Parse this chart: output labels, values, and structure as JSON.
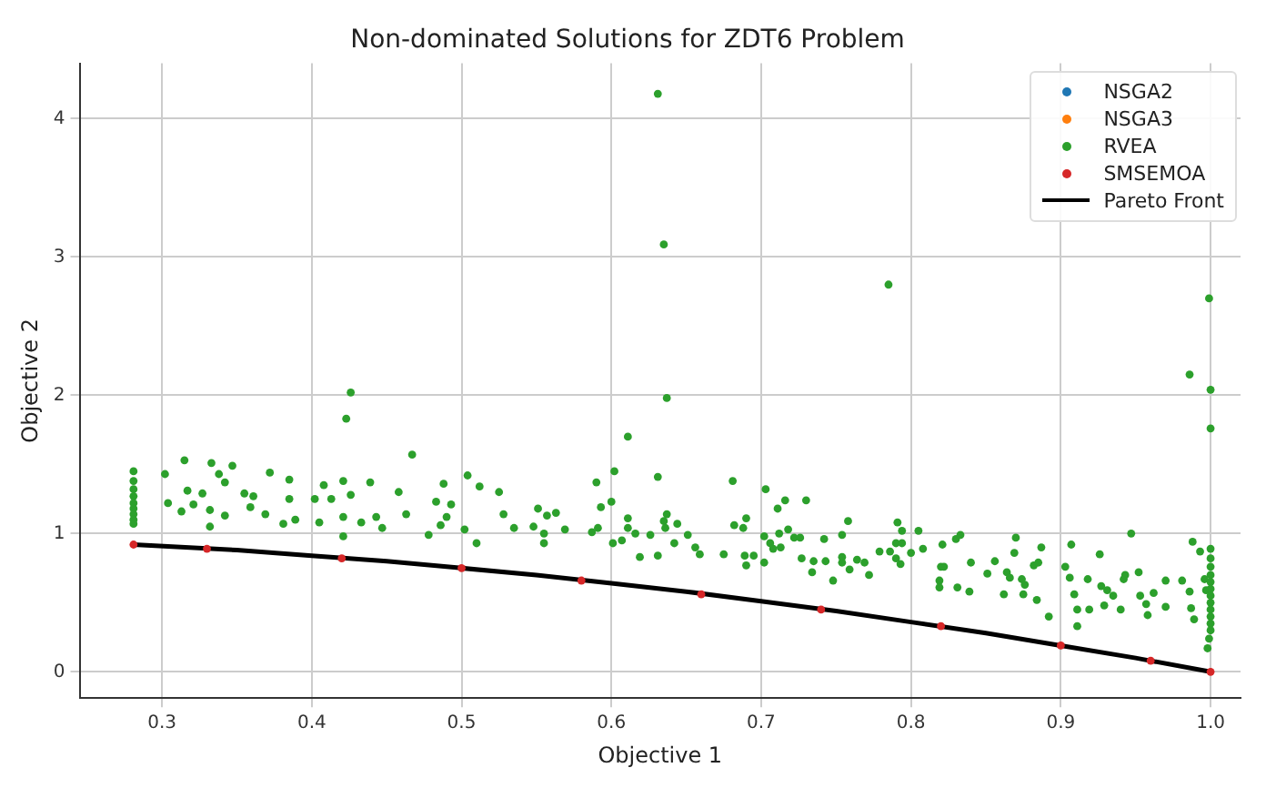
{
  "chart_data": {
    "type": "scatter",
    "title": "Non-dominated Solutions for ZDT6 Problem",
    "xlabel": "Objective 1",
    "ylabel": "Objective 2",
    "xlim": [
      0.245,
      1.02
    ],
    "xticks": [
      {
        "value": 0.3,
        "label": "0.3"
      },
      {
        "value": 0.4,
        "label": "0.4"
      },
      {
        "value": 0.5,
        "label": "0.5"
      },
      {
        "value": 0.6,
        "label": "0.6"
      },
      {
        "value": 0.7,
        "label": "0.7"
      },
      {
        "value": 0.8,
        "label": "0.8"
      },
      {
        "value": 0.9,
        "label": "0.9"
      },
      {
        "value": 1.0,
        "label": "1.0"
      }
    ],
    "ylim": [
      -0.19,
      4.4
    ],
    "yticks": [
      0,
      1,
      2,
      3,
      4
    ],
    "grid": true,
    "legend": "top right",
    "marker": "circle",
    "series": [
      {
        "name": "NSGA2",
        "color": "#1f77b4"
      },
      {
        "name": "NSGA3",
        "color": "#ff7f0e"
      },
      {
        "name": "RVEA",
        "color": "#2ca02c",
        "x": [
          0.281,
          0.281,
          0.281,
          0.281,
          0.281,
          0.281,
          0.281,
          0.281,
          0.281,
          0.315,
          0.333,
          0.347,
          0.302,
          0.338,
          0.372,
          0.342,
          0.385,
          0.408,
          0.421,
          0.439,
          0.317,
          0.327,
          0.355,
          0.361,
          0.385,
          0.402,
          0.413,
          0.426,
          0.458,
          0.304,
          0.313,
          0.321,
          0.332,
          0.342,
          0.359,
          0.369,
          0.389,
          0.405,
          0.421,
          0.433,
          0.443,
          0.463,
          0.332,
          0.381,
          0.421,
          0.447,
          0.467,
          0.488,
          0.483,
          0.493,
          0.478,
          0.486,
          0.49,
          0.504,
          0.512,
          0.502,
          0.51,
          0.525,
          0.528,
          0.535,
          0.548,
          0.551,
          0.555,
          0.555,
          0.557,
          0.563,
          0.569,
          0.59,
          0.587,
          0.593,
          0.591,
          0.6,
          0.602,
          0.611,
          0.611,
          0.611,
          0.601,
          0.607,
          0.616,
          0.619,
          0.626,
          0.631,
          0.631,
          0.635,
          0.636,
          0.637,
          0.642,
          0.644,
          0.651,
          0.656,
          0.659,
          0.675,
          0.681,
          0.682,
          0.688,
          0.69,
          0.689,
          0.69,
          0.695,
          0.703,
          0.702,
          0.702,
          0.706,
          0.708,
          0.712,
          0.711,
          0.716,
          0.713,
          0.718,
          0.722,
          0.726,
          0.73,
          0.727,
          0.735,
          0.734,
          0.742,
          0.743,
          0.748,
          0.754,
          0.631,
          0.635,
          0.785,
          0.999,
          0.986,
          1.0,
          1.0,
          0.426,
          0.423,
          0.637,
          0.758,
          0.791,
          0.794,
          0.805,
          0.754,
          0.79,
          0.794,
          0.786,
          0.779,
          0.79,
          0.793,
          0.754,
          0.764,
          0.769,
          0.759,
          0.772,
          0.8,
          0.808,
          0.821,
          0.83,
          0.833,
          0.82,
          0.822,
          0.819,
          0.819,
          0.831,
          0.839,
          0.84,
          0.851,
          0.856,
          0.864,
          0.866,
          0.862,
          0.87,
          0.869,
          0.874,
          0.876,
          0.875,
          0.882,
          0.885,
          0.887,
          0.884,
          0.892,
          0.903,
          0.906,
          0.907,
          0.909,
          0.911,
          0.911,
          0.918,
          0.919,
          0.926,
          0.927,
          0.929,
          0.931,
          0.935,
          0.94,
          0.942,
          0.943,
          0.947,
          0.952,
          0.953,
          0.957,
          0.958,
          0.962,
          0.97,
          0.97,
          0.981,
          0.986,
          0.987,
          0.989,
          0.988,
          0.993,
          0.996,
          0.997,
          0.999,
          0.998,
          1.0,
          1.0,
          1.0,
          1.0,
          1.0,
          1.0,
          1.0,
          1.0,
          1.0,
          1.0,
          1.0,
          1.0
        ],
        "values": [
          1.45,
          1.38,
          1.32,
          1.27,
          1.22,
          1.18,
          1.14,
          1.1,
          1.07,
          1.53,
          1.51,
          1.49,
          1.43,
          1.43,
          1.44,
          1.37,
          1.39,
          1.35,
          1.38,
          1.37,
          1.31,
          1.29,
          1.29,
          1.27,
          1.25,
          1.25,
          1.25,
          1.28,
          1.3,
          1.22,
          1.16,
          1.21,
          1.17,
          1.13,
          1.19,
          1.14,
          1.1,
          1.08,
          1.12,
          1.08,
          1.12,
          1.14,
          1.05,
          1.07,
          0.98,
          1.04,
          1.57,
          1.36,
          1.23,
          1.21,
          0.99,
          1.06,
          1.12,
          1.42,
          1.34,
          1.03,
          0.93,
          1.3,
          1.14,
          1.04,
          1.05,
          1.18,
          1.0,
          0.93,
          1.13,
          1.15,
          1.03,
          1.37,
          1.01,
          1.19,
          1.04,
          1.23,
          1.45,
          1.7,
          1.11,
          1.04,
          0.93,
          0.95,
          1.0,
          0.83,
          0.99,
          1.41,
          0.84,
          1.09,
          1.04,
          1.14,
          0.93,
          1.07,
          0.99,
          0.9,
          0.85,
          0.85,
          1.38,
          1.06,
          1.04,
          1.11,
          0.84,
          0.77,
          0.84,
          1.32,
          0.98,
          0.79,
          0.93,
          0.89,
          1.0,
          1.18,
          1.24,
          0.9,
          1.03,
          0.97,
          0.97,
          1.24,
          0.82,
          0.8,
          0.72,
          0.96,
          0.8,
          0.66,
          0.79,
          4.18,
          3.09,
          2.8,
          2.7,
          2.15,
          2.04,
          1.76,
          2.02,
          1.83,
          1.98,
          1.09,
          1.08,
          1.02,
          1.02,
          0.99,
          0.93,
          0.93,
          0.87,
          0.87,
          0.82,
          0.78,
          0.83,
          0.81,
          0.79,
          0.74,
          0.7,
          0.86,
          0.89,
          0.92,
          0.96,
          0.99,
          0.76,
          0.76,
          0.66,
          0.61,
          0.61,
          0.58,
          0.79,
          0.71,
          0.8,
          0.72,
          0.68,
          0.56,
          0.97,
          0.86,
          0.67,
          0.63,
          0.56,
          0.77,
          0.79,
          0.9,
          0.52,
          0.4,
          0.76,
          0.68,
          0.92,
          0.56,
          0.45,
          0.33,
          0.67,
          0.45,
          0.85,
          0.62,
          0.48,
          0.59,
          0.55,
          0.45,
          0.67,
          0.7,
          1.0,
          0.72,
          0.55,
          0.49,
          0.41,
          0.57,
          0.66,
          0.47,
          0.66,
          0.58,
          0.46,
          0.38,
          0.94,
          0.87,
          0.67,
          0.59,
          0.24,
          0.17,
          0.89,
          0.82,
          0.76,
          0.7,
          0.65,
          0.6,
          0.55,
          0.5,
          0.45,
          0.4,
          0.35,
          0.3
        ]
      },
      {
        "name": "SMSEMOA",
        "color": "#d62728",
        "x": [
          0.281,
          0.33,
          0.42,
          0.5,
          0.58,
          0.66,
          0.74,
          0.82,
          0.9,
          0.96,
          1.0
        ],
        "values": [
          0.92,
          0.89,
          0.82,
          0.75,
          0.66,
          0.56,
          0.45,
          0.33,
          0.19,
          0.08,
          0.0
        ]
      },
      {
        "name": "Pareto Front",
        "type": "line",
        "marker": "none",
        "color": "#000000",
        "x": [
          0.281,
          0.35,
          0.4,
          0.45,
          0.5,
          0.55,
          0.6,
          0.65,
          0.7,
          0.75,
          0.8,
          0.85,
          0.9,
          0.95,
          1.0
        ],
        "values": [
          0.92,
          0.88,
          0.84,
          0.8,
          0.75,
          0.7,
          0.64,
          0.58,
          0.51,
          0.44,
          0.36,
          0.28,
          0.19,
          0.1,
          0.0
        ]
      }
    ]
  }
}
